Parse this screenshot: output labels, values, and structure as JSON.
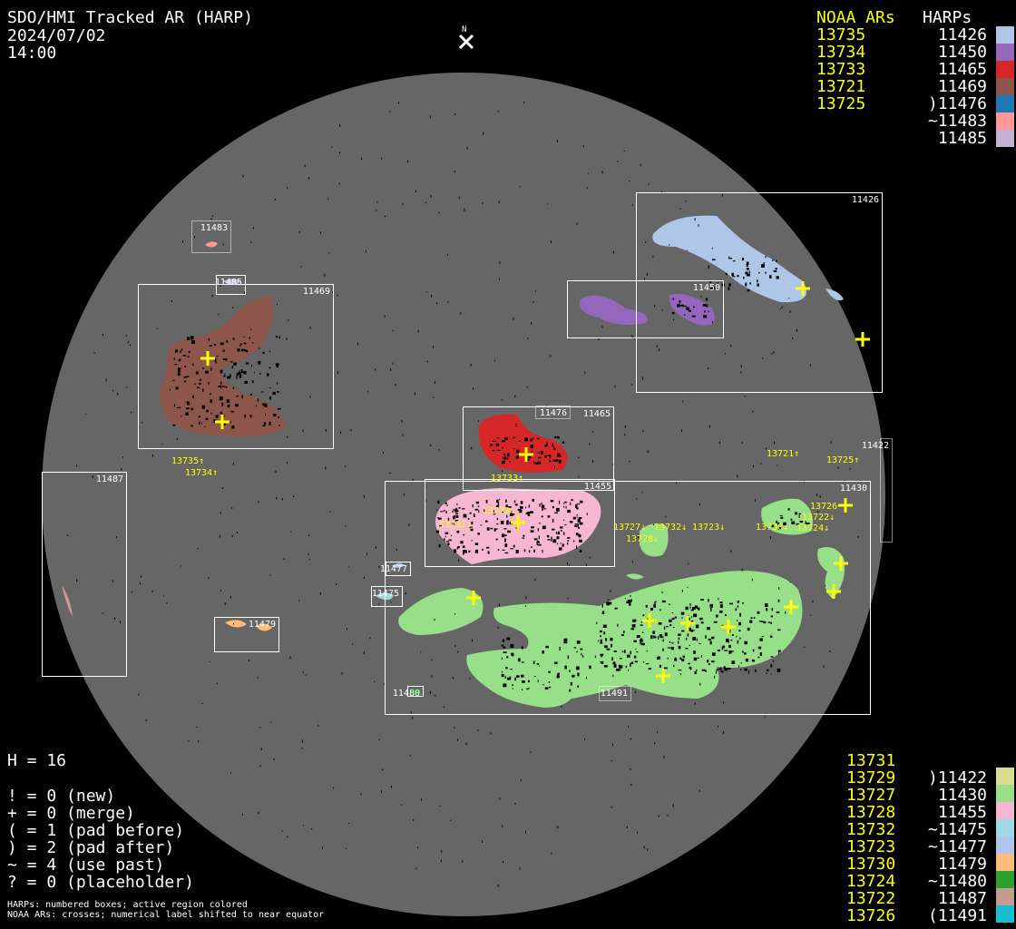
{
  "header": {
    "title": "SDO/HMI Tracked AR (HARP)",
    "date": "2024/07/02",
    "time": "14:00",
    "north_label": "N"
  },
  "legend_top": {
    "noaa_header": "NOAA ARs",
    "harp_header": "HARPs",
    "noaa": [
      "13735",
      "13734",
      "13733",
      "13721",
      "13725"
    ],
    "harps": [
      {
        "label": "11426",
        "color": "#aec7e8"
      },
      {
        "label": "11450",
        "color": "#9467bd"
      },
      {
        "label": "11465",
        "color": "#d62728"
      },
      {
        "label": "11469",
        "color": "#8c564b"
      },
      {
        "label": ")11476",
        "color": "#1f77b4"
      },
      {
        "label": "~11483",
        "color": "#ff9896"
      },
      {
        "label": "11485",
        "color": "#c5b0d5"
      }
    ]
  },
  "legend_bottom": {
    "noaa": [
      "13731",
      "13729",
      "13727",
      "13728",
      "13732",
      "13723",
      "13730",
      "13724",
      "13722",
      "13726"
    ],
    "harps": [
      {
        "label": ")11422",
        "color": "#dbdb8d"
      },
      {
        "label": "11430",
        "color": "#98df8a"
      },
      {
        "label": "11455",
        "color": "#f7b6d2"
      },
      {
        "label": "~11475",
        "color": "#9edae5"
      },
      {
        "label": "~11477",
        "color": "#aec7e8"
      },
      {
        "label": "11479",
        "color": "#ffbb78"
      },
      {
        "label": "~11480",
        "color": "#2ca02c"
      },
      {
        "label": "11487",
        "color": "#c49c94"
      },
      {
        "label": "(11491",
        "color": "#17becf"
      }
    ]
  },
  "stats": {
    "h": "H = 16",
    "lines": [
      "! = 0 (new)",
      "+ = 0 (merge)",
      "( = 1 (pad before)",
      ") = 2 (pad after)",
      "~ = 4 (use past)",
      "? = 0 (placeholder)"
    ]
  },
  "footnotes": [
    "HARPs: numbered boxes; active region colored",
    "NOAA ARs: crosses; numerical label shifted to near equator"
  ],
  "harp_boxes": [
    "11426",
    "11450",
    "11469",
    "11483",
    "11485",
    "11465",
    "11476",
    "11455",
    "11430",
    "11422",
    "11487",
    "11477",
    "11475",
    "11479",
    "11480",
    "11491"
  ],
  "noaa_labels": [
    "13735↑",
    "13734↑",
    "13733↑",
    "13721↑",
    "13725↑",
    "13729↓",
    "13731↓",
    "13727↓",
    "13728↓",
    "13732↓",
    "13723↓",
    "13730↓",
    "13724↓",
    "13722↓",
    "13726"
  ],
  "colors": {
    "disk": "#666666",
    "noaa_text": "#ffff00",
    "box": "#ffffff",
    "background": "#000000"
  }
}
